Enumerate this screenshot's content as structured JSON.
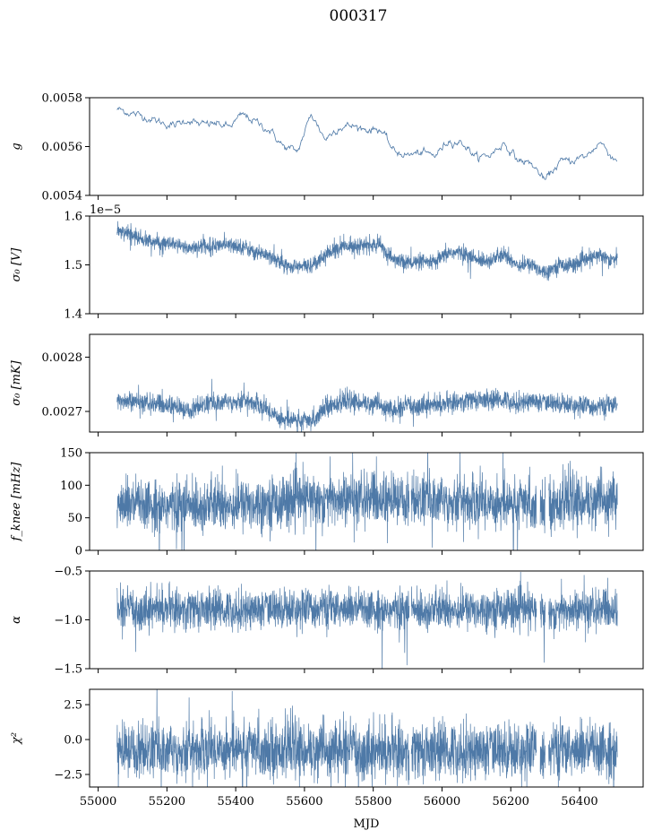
{
  "figure": {
    "title": "000317",
    "xlabel": "MJD",
    "xlim": [
      54975,
      57575
    ],
    "xticks": [
      55000,
      55200,
      55400,
      55600,
      55800,
      56000,
      56200,
      56400
    ],
    "data_range": [
      55055,
      56510
    ],
    "series_color": "#4e79a7"
  },
  "chart_data": [
    {
      "type": "line",
      "ylabel": "g",
      "ylim": [
        0.0054,
        0.0058
      ],
      "yticks": [
        0.0054,
        0.0056,
        0.0058
      ],
      "ytick_labels": [
        "0.0054",
        "0.0056",
        "0.0058"
      ],
      "offset_text": "",
      "style": "thin",
      "x": [
        55060,
        55100,
        55140,
        55180,
        55220,
        55260,
        55300,
        55340,
        55380,
        55420,
        55460,
        55500,
        55540,
        55580,
        55620,
        55660,
        55700,
        55740,
        55780,
        55820,
        55860,
        55900,
        55940,
        55980,
        56020,
        56060,
        56100,
        56140,
        56180,
        56220,
        56260,
        56300,
        56340,
        56380,
        56420,
        56460,
        56500
      ],
      "y": [
        0.005752,
        0.005735,
        0.00572,
        0.0057,
        0.005685,
        0.00571,
        0.005688,
        0.005695,
        0.00568,
        0.00573,
        0.0057,
        0.005665,
        0.005598,
        0.00558,
        0.005735,
        0.00563,
        0.00568,
        0.005685,
        0.00567,
        0.005672,
        0.00558,
        0.005565,
        0.005575,
        0.005563,
        0.005625,
        0.005615,
        0.005555,
        0.005565,
        0.005615,
        0.005545,
        0.00553,
        0.00546,
        0.005535,
        0.005545,
        0.00556,
        0.00562,
        0.00555
      ],
      "noise": 6e-06
    },
    {
      "type": "line",
      "ylabel": "σ₀ [V]",
      "ylim": [
        1.4e-05,
        1.6e-05
      ],
      "yticks": [
        1.4e-05,
        1.5e-05,
        1.6e-05
      ],
      "ytick_labels": [
        "1.4",
        "1.5",
        "1.6"
      ],
      "offset_text": "1e−5",
      "style": "band",
      "x": [
        55060,
        55100,
        55140,
        55180,
        55220,
        55260,
        55300,
        55340,
        55380,
        55420,
        55460,
        55500,
        55540,
        55580,
        55620,
        55660,
        55700,
        55740,
        55780,
        55820,
        55860,
        55900,
        55940,
        55980,
        56020,
        56060,
        56100,
        56140,
        56180,
        56220,
        56260,
        56300,
        56340,
        56380,
        56420,
        56460,
        56500
      ],
      "y": [
        1.568e-05,
        1.56e-05,
        1.55e-05,
        1.545e-05,
        1.54e-05,
        1.535e-05,
        1.538e-05,
        1.54e-05,
        1.54e-05,
        1.538e-05,
        1.525e-05,
        1.52e-05,
        1.5e-05,
        1.495e-05,
        1.5e-05,
        1.52e-05,
        1.535e-05,
        1.54e-05,
        1.54e-05,
        1.54e-05,
        1.51e-05,
        1.505e-05,
        1.505e-05,
        1.505e-05,
        1.525e-05,
        1.525e-05,
        1.51e-05,
        1.51e-05,
        1.52e-05,
        1.5e-05,
        1.5e-05,
        1.485e-05,
        1.5e-05,
        1.5e-05,
        1.51e-05,
        1.52e-05,
        1.51e-05
      ],
      "noise": 8e-08
    },
    {
      "type": "line",
      "ylabel": "σ₀ [mK]",
      "ylim": [
        0.002662,
        0.002842
      ],
      "yticks": [
        0.0027,
        0.0028
      ],
      "ytick_labels": [
        "0.0027",
        "0.0028"
      ],
      "offset_text": "",
      "style": "band",
      "x": [
        55060,
        55100,
        55140,
        55180,
        55220,
        55260,
        55300,
        55340,
        55380,
        55420,
        55460,
        55500,
        55540,
        55580,
        55620,
        55660,
        55700,
        55740,
        55780,
        55820,
        55860,
        55900,
        55940,
        55980,
        56020,
        56060,
        56100,
        56140,
        56180,
        56220,
        56260,
        56300,
        56340,
        56380,
        56420,
        56460,
        56500
      ],
      "y": [
        0.00272,
        0.002718,
        0.002715,
        0.002712,
        0.00271,
        0.0027,
        0.002712,
        0.002715,
        0.002718,
        0.00272,
        0.002715,
        0.0027,
        0.002685,
        0.002685,
        0.00268,
        0.00271,
        0.002715,
        0.002718,
        0.002715,
        0.002712,
        0.0027,
        0.00271,
        0.002712,
        0.002712,
        0.002715,
        0.00272,
        0.002722,
        0.00272,
        0.002722,
        0.002715,
        0.00272,
        0.002715,
        0.002715,
        0.002712,
        0.00271,
        0.002708,
        0.002712
      ],
      "noise": 9e-06
    },
    {
      "type": "line",
      "ylabel": "f_knee [mHz]",
      "ylim": [
        0,
        150
      ],
      "yticks": [
        0,
        50,
        100,
        150
      ],
      "ytick_labels": [
        "0",
        "50",
        "100",
        "150"
      ],
      "offset_text": "",
      "style": "band",
      "x": [
        55060,
        55200,
        55400,
        55600,
        55800,
        56000,
        56200,
        56300,
        56400,
        56500
      ],
      "y": [
        70,
        68,
        70,
        78,
        78,
        77,
        72,
        70,
        75,
        78
      ],
      "noise": 20,
      "gaps": [
        [
          55905,
          55910
        ],
        [
          56275,
          56285
        ],
        [
          56300,
          56310
        ]
      ]
    },
    {
      "type": "line",
      "ylabel": "α",
      "ylim": [
        -1.5,
        -0.5
      ],
      "yticks": [
        -1.5,
        -1.0,
        -0.5
      ],
      "ytick_labels": [
        "−1.5",
        "−1.0",
        "−0.5"
      ],
      "offset_text": "",
      "style": "band",
      "x": [
        55060,
        55200,
        55400,
        55600,
        55800,
        56000,
        56200,
        56300,
        56400,
        56500
      ],
      "y": [
        -0.9,
        -0.88,
        -0.9,
        -0.88,
        -0.9,
        -0.9,
        -0.88,
        -0.92,
        -0.9,
        -0.9
      ],
      "noise": 0.1,
      "gaps": [
        [
          55905,
          55910
        ],
        [
          56275,
          56285
        ],
        [
          56300,
          56310
        ]
      ]
    },
    {
      "type": "line",
      "ylabel": "χ²",
      "ylim": [
        -3.4,
        3.6
      ],
      "yticks": [
        -2.5,
        0.0,
        2.5
      ],
      "ytick_labels": [
        "−2.5",
        "0.0",
        "2.5"
      ],
      "offset_text": "",
      "style": "band",
      "x": [
        55060,
        55200,
        55400,
        55600,
        55800,
        56000,
        56200,
        56300,
        56400,
        56500
      ],
      "y": [
        -0.8,
        -0.8,
        -0.6,
        -0.8,
        -0.8,
        -0.8,
        -0.8,
        -0.8,
        -0.8,
        -0.8
      ],
      "noise": 1.0,
      "gaps": [
        [
          55905,
          55910
        ],
        [
          56275,
          56285
        ],
        [
          56300,
          56310
        ]
      ]
    }
  ]
}
